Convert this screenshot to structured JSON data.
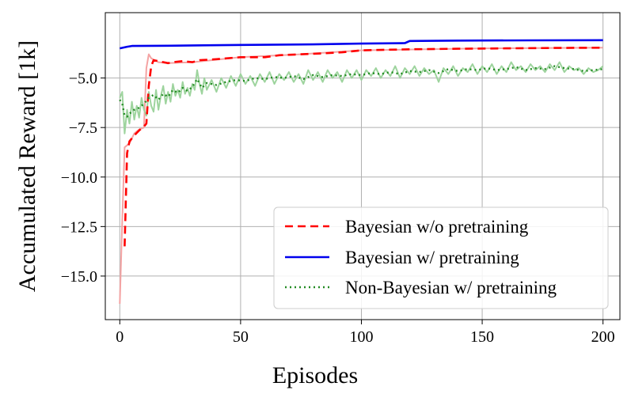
{
  "chart_data": {
    "type": "line",
    "xlabel": "Episodes",
    "ylabel": "Accumulated Reward [1k]",
    "xlim": [
      -6,
      207
    ],
    "ylim": [
      -17.2,
      -1.7
    ],
    "x_ticks": [
      0,
      50,
      100,
      150,
      200
    ],
    "x_tick_labels": [
      "0",
      "50",
      "100",
      "150",
      "200"
    ],
    "y_ticks": [
      -5.0,
      -7.5,
      -10.0,
      -12.5,
      -15.0
    ],
    "y_tick_labels": [
      "−5.0",
      "−7.5",
      "−10.0",
      "−12.5",
      "−15.0"
    ],
    "grid": true,
    "legend_position": "lower-right",
    "series": [
      {
        "name": "Bayesian w/o pretraining",
        "color": "#ff0000",
        "style": "dashed",
        "points": [
          [
            2,
            -13.5
          ],
          [
            3,
            -8.8
          ],
          [
            4,
            -8.2
          ],
          [
            6,
            -7.9
          ],
          [
            8,
            -7.65
          ],
          [
            10,
            -7.45
          ],
          [
            11,
            -7.3
          ],
          [
            12,
            -5.4
          ],
          [
            13,
            -4.4
          ],
          [
            14,
            -4.1
          ],
          [
            16,
            -4.15
          ],
          [
            20,
            -4.25
          ],
          [
            22,
            -4.2
          ],
          [
            26,
            -4.15
          ],
          [
            30,
            -4.2
          ],
          [
            33,
            -4.1
          ],
          [
            40,
            -4.05
          ],
          [
            50,
            -3.95
          ],
          [
            60,
            -3.95
          ],
          [
            66,
            -3.85
          ],
          [
            75,
            -3.8
          ],
          [
            85,
            -3.75
          ],
          [
            92,
            -3.7
          ],
          [
            100,
            -3.6
          ],
          [
            120,
            -3.55
          ],
          [
            140,
            -3.52
          ],
          [
            160,
            -3.5
          ],
          [
            180,
            -3.48
          ],
          [
            200,
            -3.47
          ]
        ]
      },
      {
        "name": "Bayesian w/ pretraining",
        "color": "#0000ee",
        "style": "solid",
        "points": [
          [
            0,
            -3.5
          ],
          [
            3,
            -3.42
          ],
          [
            5,
            -3.38
          ],
          [
            20,
            -3.37
          ],
          [
            50,
            -3.33
          ],
          [
            80,
            -3.3
          ],
          [
            100,
            -3.26
          ],
          [
            118,
            -3.24
          ],
          [
            120,
            -3.13
          ],
          [
            140,
            -3.11
          ],
          [
            170,
            -3.1
          ],
          [
            200,
            -3.09
          ]
        ]
      },
      {
        "name": "Non-Bayesian w/ pretraining",
        "color": "#228b22",
        "style": "dotted",
        "points": [
          [
            0,
            -6.1
          ],
          [
            1,
            -6.3
          ],
          [
            2,
            -6.9
          ],
          [
            3,
            -6.95
          ],
          [
            4,
            -6.8
          ],
          [
            6,
            -6.6
          ],
          [
            8,
            -6.5
          ],
          [
            10,
            -6.3
          ],
          [
            12,
            -6.0
          ],
          [
            14,
            -5.85
          ],
          [
            16,
            -6.1
          ],
          [
            18,
            -5.8
          ],
          [
            20,
            -5.95
          ],
          [
            22,
            -5.6
          ],
          [
            24,
            -5.75
          ],
          [
            26,
            -5.5
          ],
          [
            28,
            -5.65
          ],
          [
            30,
            -5.45
          ],
          [
            32,
            -5.05
          ],
          [
            34,
            -5.5
          ],
          [
            36,
            -5.25
          ],
          [
            40,
            -5.35
          ],
          [
            44,
            -5.2
          ],
          [
            48,
            -5.1
          ],
          [
            52,
            -5.15
          ],
          [
            56,
            -5.0
          ],
          [
            60,
            -5.05
          ],
          [
            64,
            -4.95
          ],
          [
            68,
            -5.0
          ],
          [
            72,
            -4.9
          ],
          [
            76,
            -5.05
          ],
          [
            80,
            -4.85
          ],
          [
            84,
            -4.95
          ],
          [
            88,
            -4.85
          ],
          [
            92,
            -4.9
          ],
          [
            96,
            -4.8
          ],
          [
            100,
            -4.85
          ],
          [
            104,
            -4.75
          ],
          [
            108,
            -4.8
          ],
          [
            112,
            -4.7
          ],
          [
            116,
            -4.8
          ],
          [
            120,
            -4.65
          ],
          [
            124,
            -4.7
          ],
          [
            128,
            -4.6
          ],
          [
            132,
            -4.75
          ],
          [
            136,
            -4.55
          ],
          [
            140,
            -4.65
          ],
          [
            144,
            -4.55
          ],
          [
            148,
            -4.6
          ],
          [
            152,
            -4.5
          ],
          [
            156,
            -4.6
          ],
          [
            160,
            -4.55
          ],
          [
            164,
            -4.45
          ],
          [
            168,
            -4.6
          ],
          [
            172,
            -4.5
          ],
          [
            176,
            -4.55
          ],
          [
            180,
            -4.4
          ],
          [
            184,
            -4.5
          ],
          [
            188,
            -4.55
          ],
          [
            192,
            -4.65
          ],
          [
            196,
            -4.6
          ],
          [
            200,
            -4.55
          ]
        ]
      }
    ],
    "raw_series": [
      {
        "color": "#f4a3a3",
        "points": [
          [
            0,
            -16.4
          ],
          [
            1,
            -12.2
          ],
          [
            2,
            -8.5
          ],
          [
            4,
            -8.3
          ],
          [
            6,
            -7.8
          ],
          [
            8,
            -7.6
          ],
          [
            10,
            -7.5
          ],
          [
            11,
            -4.5
          ],
          [
            12,
            -3.8
          ],
          [
            13,
            -4.0
          ],
          [
            16,
            -4.2
          ],
          [
            20,
            -4.25
          ],
          [
            30,
            -4.2
          ],
          [
            50,
            -3.95
          ],
          [
            75,
            -3.8
          ],
          [
            100,
            -3.6
          ],
          [
            150,
            -3.5
          ],
          [
            200,
            -3.47
          ]
        ]
      },
      {
        "color": "#9ed49e",
        "points": [
          [
            0,
            -6.0
          ],
          [
            1,
            -5.7
          ],
          [
            2,
            -7.8
          ],
          [
            3,
            -6.6
          ],
          [
            4,
            -7.3
          ],
          [
            5,
            -6.2
          ],
          [
            6,
            -7.1
          ],
          [
            7,
            -6.4
          ],
          [
            8,
            -7.0
          ],
          [
            9,
            -6.0
          ],
          [
            10,
            -6.6
          ],
          [
            11,
            -6.9
          ],
          [
            12,
            -5.7
          ],
          [
            13,
            -6.4
          ],
          [
            14,
            -6.7
          ],
          [
            15,
            -5.6
          ],
          [
            16,
            -6.6
          ],
          [
            17,
            -5.9
          ],
          [
            18,
            -5.4
          ],
          [
            19,
            -6.3
          ],
          [
            20,
            -5.7
          ],
          [
            21,
            -6.2
          ],
          [
            22,
            -5.3
          ],
          [
            23,
            -5.9
          ],
          [
            24,
            -5.6
          ],
          [
            25,
            -6.0
          ],
          [
            26,
            -5.2
          ],
          [
            27,
            -5.8
          ],
          [
            28,
            -5.5
          ],
          [
            29,
            -5.9
          ],
          [
            30,
            -5.3
          ],
          [
            31,
            -5.6
          ],
          [
            32,
            -4.6
          ],
          [
            33,
            -5.3
          ],
          [
            34,
            -5.8
          ],
          [
            35,
            -5.0
          ],
          [
            36,
            -5.6
          ],
          [
            38,
            -5.1
          ],
          [
            40,
            -5.7
          ],
          [
            42,
            -5.0
          ],
          [
            44,
            -5.5
          ],
          [
            46,
            -4.9
          ],
          [
            48,
            -5.4
          ],
          [
            50,
            -4.8
          ],
          [
            52,
            -5.3
          ],
          [
            54,
            -4.9
          ],
          [
            56,
            -5.4
          ],
          [
            58,
            -4.8
          ],
          [
            60,
            -5.2
          ],
          [
            62,
            -4.7
          ],
          [
            64,
            -5.3
          ],
          [
            66,
            -4.8
          ],
          [
            68,
            -5.1
          ],
          [
            70,
            -4.7
          ],
          [
            72,
            -5.2
          ],
          [
            74,
            -4.8
          ],
          [
            76,
            -5.3
          ],
          [
            78,
            -4.6
          ],
          [
            80,
            -5.1
          ],
          [
            82,
            -4.7
          ],
          [
            84,
            -5.2
          ],
          [
            86,
            -4.6
          ],
          [
            88,
            -5.0
          ],
          [
            90,
            -4.7
          ],
          [
            92,
            -5.2
          ],
          [
            94,
            -4.6
          ],
          [
            96,
            -5.0
          ],
          [
            98,
            -4.6
          ],
          [
            100,
            -5.1
          ],
          [
            102,
            -4.6
          ],
          [
            104,
            -4.9
          ],
          [
            106,
            -4.5
          ],
          [
            108,
            -5.0
          ],
          [
            110,
            -4.6
          ],
          [
            112,
            -4.9
          ],
          [
            114,
            -4.4
          ],
          [
            116,
            -5.0
          ],
          [
            118,
            -4.5
          ],
          [
            120,
            -4.8
          ],
          [
            122,
            -4.4
          ],
          [
            124,
            -4.9
          ],
          [
            126,
            -4.5
          ],
          [
            128,
            -4.8
          ],
          [
            130,
            -4.6
          ],
          [
            132,
            -5.2
          ],
          [
            134,
            -4.5
          ],
          [
            136,
            -4.8
          ],
          [
            138,
            -4.4
          ],
          [
            140,
            -4.9
          ],
          [
            142,
            -4.5
          ],
          [
            144,
            -4.7
          ],
          [
            146,
            -4.3
          ],
          [
            148,
            -4.8
          ],
          [
            150,
            -4.4
          ],
          [
            152,
            -4.7
          ],
          [
            154,
            -4.3
          ],
          [
            156,
            -4.8
          ],
          [
            158,
            -4.4
          ],
          [
            160,
            -4.7
          ],
          [
            162,
            -4.2
          ],
          [
            164,
            -4.6
          ],
          [
            166,
            -4.4
          ],
          [
            168,
            -4.7
          ],
          [
            170,
            -4.3
          ],
          [
            172,
            -4.6
          ],
          [
            174,
            -4.4
          ],
          [
            176,
            -4.7
          ],
          [
            178,
            -4.3
          ],
          [
            180,
            -4.6
          ],
          [
            182,
            -4.2
          ],
          [
            184,
            -4.7
          ],
          [
            186,
            -4.4
          ],
          [
            188,
            -4.6
          ],
          [
            190,
            -4.5
          ],
          [
            192,
            -4.8
          ],
          [
            194,
            -4.5
          ],
          [
            196,
            -4.7
          ],
          [
            198,
            -4.6
          ],
          [
            200,
            -4.4
          ]
        ]
      }
    ]
  }
}
